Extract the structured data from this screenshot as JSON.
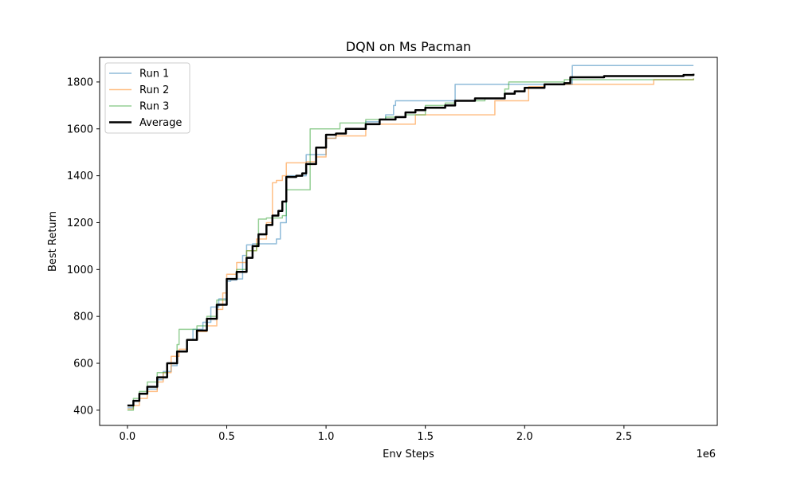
{
  "chart_data": {
    "type": "line",
    "title": "DQN on Ms Pacman",
    "xlabel": "Env Steps",
    "ylabel": "Best Return",
    "x_multiplier_label": "1e6",
    "xlim": [
      -0.14,
      2.97
    ],
    "ylim": [
      335,
      1905
    ],
    "x_ticks": [
      0,
      0.5,
      1.0,
      1.5,
      2.0,
      2.5
    ],
    "x_tick_labels": [
      "0.0",
      "0.5",
      "1.0",
      "1.5",
      "2.0",
      "2.5"
    ],
    "y_ticks": [
      400,
      600,
      800,
      1000,
      1200,
      1400,
      1600,
      1800
    ],
    "y_tick_labels": [
      "400",
      "600",
      "800",
      "1000",
      "1200",
      "1400",
      "1600",
      "1800"
    ],
    "grid": false,
    "legend_position": "upper-left",
    "series": [
      {
        "name": "Run 1",
        "color": "#1f77b4",
        "x": [
          0,
          0.03,
          0.06,
          0.1,
          0.15,
          0.18,
          0.22,
          0.25,
          0.3,
          0.33,
          0.38,
          0.42,
          0.46,
          0.5,
          0.52,
          0.55,
          0.58,
          0.6,
          0.63,
          0.66,
          0.7,
          0.75,
          0.77,
          0.8,
          0.82,
          0.9,
          0.95,
          1.0,
          1.05,
          1.1,
          1.2,
          1.27,
          1.3,
          1.34,
          1.35,
          1.45,
          1.64,
          1.65,
          2.0,
          2.22,
          2.24,
          2.85
        ],
        "y": [
          410,
          440,
          470,
          490,
          530,
          565,
          590,
          650,
          700,
          745,
          775,
          840,
          875,
          950,
          955,
          960,
          1060,
          1105,
          1110,
          1110,
          1110,
          1130,
          1200,
          1400,
          1400,
          1490,
          1490,
          1560,
          1580,
          1600,
          1630,
          1640,
          1660,
          1700,
          1720,
          1720,
          1720,
          1790,
          1790,
          1790,
          1870,
          1870
        ]
      },
      {
        "name": "Run 2",
        "color": "#ff7f0e",
        "x": [
          0,
          0.03,
          0.06,
          0.1,
          0.15,
          0.18,
          0.22,
          0.26,
          0.3,
          0.35,
          0.4,
          0.45,
          0.48,
          0.5,
          0.55,
          0.6,
          0.65,
          0.7,
          0.73,
          0.75,
          0.78,
          0.8,
          0.85,
          0.9,
          0.95,
          1.0,
          1.05,
          1.1,
          1.2,
          1.3,
          1.38,
          1.42,
          1.45,
          1.6,
          1.8,
          1.85,
          1.9,
          2.0,
          2.02,
          2.1,
          2.6,
          2.65,
          2.85
        ],
        "y": [
          405,
          420,
          450,
          480,
          520,
          560,
          630,
          660,
          700,
          735,
          760,
          830,
          900,
          980,
          1030,
          1080,
          1130,
          1200,
          1370,
          1380,
          1400,
          1455,
          1455,
          1460,
          1480,
          1560,
          1570,
          1570,
          1620,
          1620,
          1620,
          1620,
          1660,
          1660,
          1660,
          1720,
          1720,
          1720,
          1780,
          1790,
          1790,
          1810,
          1815
        ]
      },
      {
        "name": "Run 3",
        "color": "#2ca02c",
        "x": [
          0,
          0.03,
          0.06,
          0.1,
          0.15,
          0.2,
          0.25,
          0.26,
          0.3,
          0.35,
          0.4,
          0.45,
          0.5,
          0.55,
          0.6,
          0.65,
          0.66,
          0.7,
          0.75,
          0.78,
          0.8,
          0.85,
          0.9,
          0.92,
          0.95,
          1.0,
          1.05,
          1.07,
          1.1,
          1.2,
          1.3,
          1.4,
          1.5,
          1.6,
          1.65,
          1.8,
          1.9,
          1.92,
          2.0,
          2.1,
          2.2,
          2.4,
          2.6,
          2.85
        ],
        "y": [
          400,
          450,
          480,
          520,
          560,
          600,
          680,
          745,
          745,
          760,
          800,
          870,
          960,
          1000,
          1080,
          1110,
          1215,
          1220,
          1220,
          1230,
          1340,
          1340,
          1340,
          1600,
          1600,
          1600,
          1600,
          1625,
          1625,
          1640,
          1650,
          1660,
          1700,
          1710,
          1720,
          1730,
          1770,
          1800,
          1800,
          1800,
          1810,
          1810,
          1810,
          1815
        ]
      },
      {
        "name": "Average",
        "color": "#000000",
        "x": [
          0,
          0.03,
          0.06,
          0.1,
          0.15,
          0.2,
          0.25,
          0.3,
          0.35,
          0.4,
          0.45,
          0.5,
          0.55,
          0.6,
          0.63,
          0.66,
          0.7,
          0.73,
          0.76,
          0.78,
          0.8,
          0.85,
          0.88,
          0.9,
          0.95,
          1.0,
          1.05,
          1.1,
          1.2,
          1.27,
          1.35,
          1.4,
          1.45,
          1.5,
          1.6,
          1.65,
          1.75,
          1.85,
          1.9,
          1.95,
          2.0,
          2.1,
          2.2,
          2.23,
          2.4,
          2.6,
          2.8,
          2.85
        ],
        "y": [
          420,
          440,
          470,
          500,
          540,
          600,
          650,
          700,
          740,
          790,
          850,
          960,
          990,
          1050,
          1100,
          1150,
          1190,
          1230,
          1250,
          1290,
          1395,
          1400,
          1410,
          1450,
          1520,
          1575,
          1580,
          1600,
          1620,
          1640,
          1650,
          1670,
          1680,
          1690,
          1700,
          1720,
          1730,
          1730,
          1750,
          1760,
          1775,
          1790,
          1795,
          1820,
          1825,
          1825,
          1830,
          1835
        ]
      }
    ]
  }
}
